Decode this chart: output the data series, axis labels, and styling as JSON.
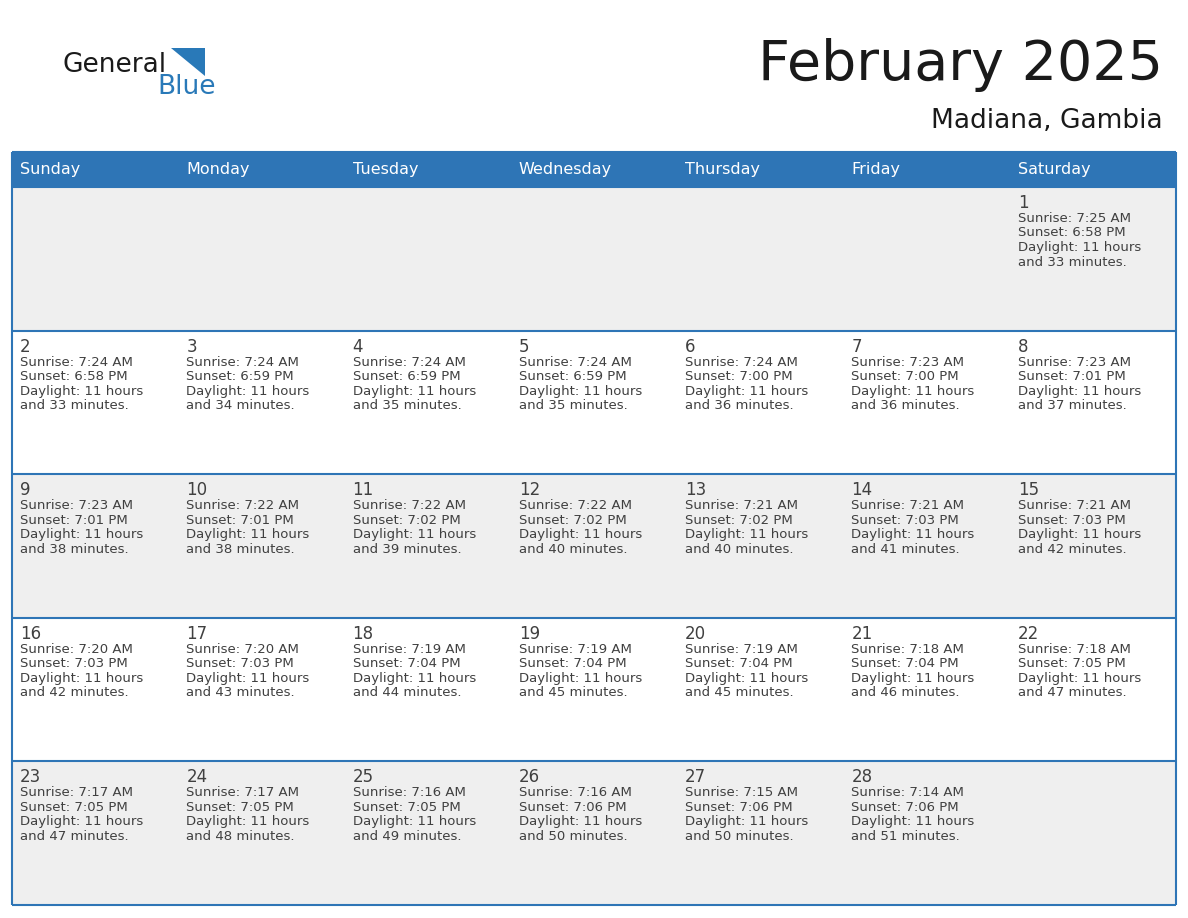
{
  "title": "February 2025",
  "subtitle": "Madiana, Gambia",
  "days_of_week": [
    "Sunday",
    "Monday",
    "Tuesday",
    "Wednesday",
    "Thursday",
    "Friday",
    "Saturday"
  ],
  "header_bg": "#2E75B6",
  "header_text": "#FFFFFF",
  "cell_bg_gray": "#EFEFEF",
  "cell_bg_white": "#FFFFFF",
  "day_number_color": "#404040",
  "text_color": "#404040",
  "line_color": "#2E75B6",
  "title_color": "#1a1a1a",
  "logo_general_color": "#1a1a1a",
  "logo_blue_color": "#2979B8",
  "calendar_data": [
    [
      null,
      null,
      null,
      null,
      null,
      null,
      {
        "day": "1",
        "sunrise": "7:25 AM",
        "sunset": "6:58 PM",
        "daylight": "11 hours",
        "daylight2": "and 33 minutes."
      }
    ],
    [
      {
        "day": "2",
        "sunrise": "7:24 AM",
        "sunset": "6:58 PM",
        "daylight": "11 hours",
        "daylight2": "and 33 minutes."
      },
      {
        "day": "3",
        "sunrise": "7:24 AM",
        "sunset": "6:59 PM",
        "daylight": "11 hours",
        "daylight2": "and 34 minutes."
      },
      {
        "day": "4",
        "sunrise": "7:24 AM",
        "sunset": "6:59 PM",
        "daylight": "11 hours",
        "daylight2": "and 35 minutes."
      },
      {
        "day": "5",
        "sunrise": "7:24 AM",
        "sunset": "6:59 PM",
        "daylight": "11 hours",
        "daylight2": "and 35 minutes."
      },
      {
        "day": "6",
        "sunrise": "7:24 AM",
        "sunset": "7:00 PM",
        "daylight": "11 hours",
        "daylight2": "and 36 minutes."
      },
      {
        "day": "7",
        "sunrise": "7:23 AM",
        "sunset": "7:00 PM",
        "daylight": "11 hours",
        "daylight2": "and 36 minutes."
      },
      {
        "day": "8",
        "sunrise": "7:23 AM",
        "sunset": "7:01 PM",
        "daylight": "11 hours",
        "daylight2": "and 37 minutes."
      }
    ],
    [
      {
        "day": "9",
        "sunrise": "7:23 AM",
        "sunset": "7:01 PM",
        "daylight": "11 hours",
        "daylight2": "and 38 minutes."
      },
      {
        "day": "10",
        "sunrise": "7:22 AM",
        "sunset": "7:01 PM",
        "daylight": "11 hours",
        "daylight2": "and 38 minutes."
      },
      {
        "day": "11",
        "sunrise": "7:22 AM",
        "sunset": "7:02 PM",
        "daylight": "11 hours",
        "daylight2": "and 39 minutes."
      },
      {
        "day": "12",
        "sunrise": "7:22 AM",
        "sunset": "7:02 PM",
        "daylight": "11 hours",
        "daylight2": "and 40 minutes."
      },
      {
        "day": "13",
        "sunrise": "7:21 AM",
        "sunset": "7:02 PM",
        "daylight": "11 hours",
        "daylight2": "and 40 minutes."
      },
      {
        "day": "14",
        "sunrise": "7:21 AM",
        "sunset": "7:03 PM",
        "daylight": "11 hours",
        "daylight2": "and 41 minutes."
      },
      {
        "day": "15",
        "sunrise": "7:21 AM",
        "sunset": "7:03 PM",
        "daylight": "11 hours",
        "daylight2": "and 42 minutes."
      }
    ],
    [
      {
        "day": "16",
        "sunrise": "7:20 AM",
        "sunset": "7:03 PM",
        "daylight": "11 hours",
        "daylight2": "and 42 minutes."
      },
      {
        "day": "17",
        "sunrise": "7:20 AM",
        "sunset": "7:03 PM",
        "daylight": "11 hours",
        "daylight2": "and 43 minutes."
      },
      {
        "day": "18",
        "sunrise": "7:19 AM",
        "sunset": "7:04 PM",
        "daylight": "11 hours",
        "daylight2": "and 44 minutes."
      },
      {
        "day": "19",
        "sunrise": "7:19 AM",
        "sunset": "7:04 PM",
        "daylight": "11 hours",
        "daylight2": "and 45 minutes."
      },
      {
        "day": "20",
        "sunrise": "7:19 AM",
        "sunset": "7:04 PM",
        "daylight": "11 hours",
        "daylight2": "and 45 minutes."
      },
      {
        "day": "21",
        "sunrise": "7:18 AM",
        "sunset": "7:04 PM",
        "daylight": "11 hours",
        "daylight2": "and 46 minutes."
      },
      {
        "day": "22",
        "sunrise": "7:18 AM",
        "sunset": "7:05 PM",
        "daylight": "11 hours",
        "daylight2": "and 47 minutes."
      }
    ],
    [
      {
        "day": "23",
        "sunrise": "7:17 AM",
        "sunset": "7:05 PM",
        "daylight": "11 hours",
        "daylight2": "and 47 minutes."
      },
      {
        "day": "24",
        "sunrise": "7:17 AM",
        "sunset": "7:05 PM",
        "daylight": "11 hours",
        "daylight2": "and 48 minutes."
      },
      {
        "day": "25",
        "sunrise": "7:16 AM",
        "sunset": "7:05 PM",
        "daylight": "11 hours",
        "daylight2": "and 49 minutes."
      },
      {
        "day": "26",
        "sunrise": "7:16 AM",
        "sunset": "7:06 PM",
        "daylight": "11 hours",
        "daylight2": "and 50 minutes."
      },
      {
        "day": "27",
        "sunrise": "7:15 AM",
        "sunset": "7:06 PM",
        "daylight": "11 hours",
        "daylight2": "and 50 minutes."
      },
      {
        "day": "28",
        "sunrise": "7:14 AM",
        "sunset": "7:06 PM",
        "daylight": "11 hours",
        "daylight2": "and 51 minutes."
      },
      null
    ]
  ]
}
